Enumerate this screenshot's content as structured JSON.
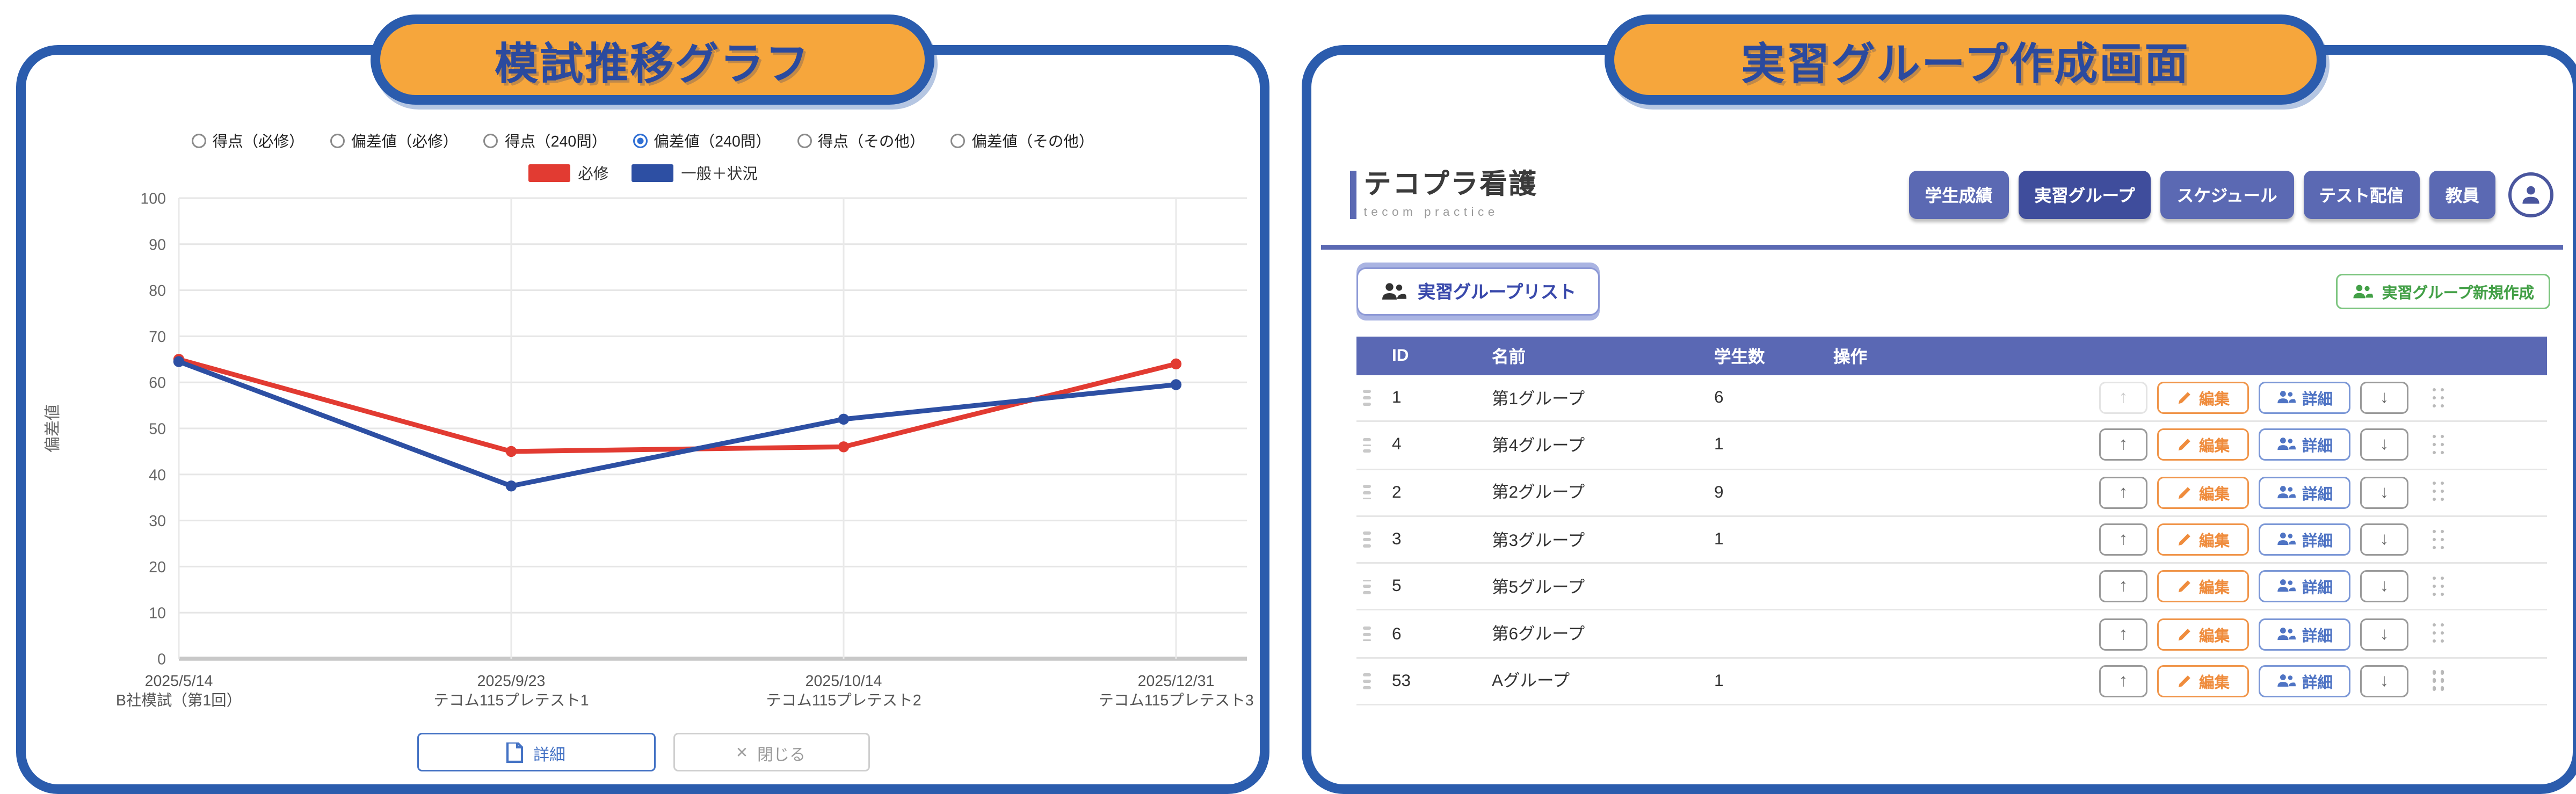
{
  "left_panel": {
    "title": "模試推移グラフ",
    "radios": [
      {
        "label": "得点（必修）",
        "selected": false
      },
      {
        "label": "偏差値（必修）",
        "selected": false
      },
      {
        "label": "得点（240問）",
        "selected": false
      },
      {
        "label": "偏差値（240問）",
        "selected": true
      },
      {
        "label": "得点（その他）",
        "selected": false
      },
      {
        "label": "偏差値（その他）",
        "selected": false
      }
    ],
    "chart_data": {
      "type": "line",
      "x_labels": [
        [
          "2025/5/14",
          "B社模試（第1回）"
        ],
        [
          "2025/9/23",
          "テコム115プレテスト1"
        ],
        [
          "2025/10/14",
          "テコム115プレテスト2"
        ],
        [
          "2025/12/31",
          "テコム115プレテスト3"
        ]
      ],
      "series": [
        {
          "name": "必修",
          "color": "#e23b32",
          "values": [
            65,
            45,
            46,
            64
          ]
        },
        {
          "name": "一般＋状況",
          "color": "#2d4fa3",
          "values": [
            64.5,
            37.5,
            52,
            59.5
          ]
        }
      ],
      "ylabel": "偏差値",
      "ylim": [
        0,
        100
      ],
      "ytick_step": 10,
      "grid": true,
      "legend_position": "top"
    },
    "buttons": {
      "detail": "詳細",
      "close": "閉じる"
    }
  },
  "right_panel": {
    "title": "実習グループ作成画面",
    "brand": {
      "name": "テコプラ看護",
      "sub": "tecom practice"
    },
    "nav": [
      {
        "label": "学生成績",
        "active": false
      },
      {
        "label": "実習グループ",
        "active": true
      },
      {
        "label": "スケジュール",
        "active": false
      },
      {
        "label": "テスト配信",
        "active": false
      },
      {
        "label": "教員",
        "active": false
      }
    ],
    "toolbar": {
      "list_button": "実習グループリスト",
      "create_button": "実習グループ新規作成"
    },
    "table": {
      "headers": [
        "ID",
        "名前",
        "学生数",
        "操作"
      ],
      "action_labels": {
        "up": "↑",
        "edit": "編集",
        "detail": "詳細",
        "down": "↓"
      },
      "rows": [
        {
          "id": "1",
          "name": "第1グループ",
          "count": "6",
          "up_disabled": true
        },
        {
          "id": "4",
          "name": "第4グループ",
          "count": "1",
          "up_disabled": false
        },
        {
          "id": "2",
          "name": "第2グループ",
          "count": "9",
          "up_disabled": false
        },
        {
          "id": "3",
          "name": "第3グループ",
          "count": "1",
          "up_disabled": false
        },
        {
          "id": "5",
          "name": "第5グループ",
          "count": "",
          "up_disabled": false
        },
        {
          "id": "6",
          "name": "第6グループ",
          "count": "",
          "up_disabled": false
        },
        {
          "id": "53",
          "name": "Aグループ",
          "count": "1",
          "up_disabled": false
        }
      ]
    }
  },
  "colors": {
    "panel_border": "#2b5cad",
    "title_pill_bg": "#f6a63c",
    "title_text": "#2b4a9e",
    "nav_button": "#5b69b3",
    "nav_button_active": "#3f4d9c",
    "table_header_bg": "#5a68b4",
    "edit_accent": "#ef8c3d",
    "detail_accent": "#4f74c4",
    "create_accent": "#43a047",
    "series_red": "#e23b32",
    "series_blue": "#2d4fa3"
  }
}
